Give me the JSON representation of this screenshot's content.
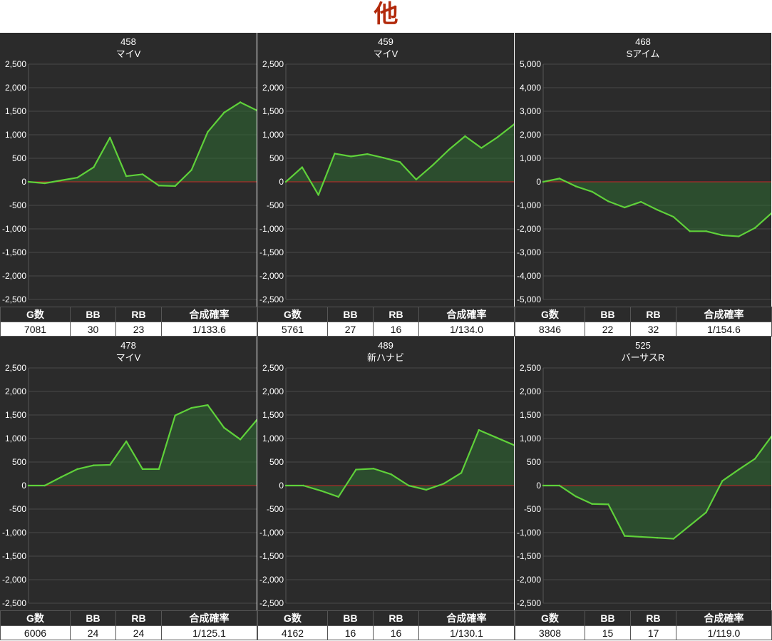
{
  "page": {
    "title": "他"
  },
  "colors": {
    "background": "#2b2b2b",
    "line": "#5fd13a",
    "zero_line": "#c62828",
    "fill": "#2e6a32",
    "title": "#b22a0c"
  },
  "table_headers": [
    "G数",
    "BB",
    "RB",
    "合成確率"
  ],
  "panels": [
    {
      "number": "458",
      "machine": "マイV",
      "stats": {
        "games": "7081",
        "bb": "30",
        "rb": "23",
        "rate": "1/133.6"
      }
    },
    {
      "number": "459",
      "machine": "マイV",
      "stats": {
        "games": "5761",
        "bb": "27",
        "rb": "16",
        "rate": "1/134.0"
      }
    },
    {
      "number": "468",
      "machine": "Sアイム",
      "stats": {
        "games": "8346",
        "bb": "22",
        "rb": "32",
        "rate": "1/154.6"
      }
    },
    {
      "number": "478",
      "machine": "マイV",
      "stats": {
        "games": "6006",
        "bb": "24",
        "rb": "24",
        "rate": "1/125.1"
      }
    },
    {
      "number": "489",
      "machine": "新ハナビ",
      "stats": {
        "games": "4162",
        "bb": "16",
        "rb": "16",
        "rate": "1/130.1"
      }
    },
    {
      "number": "525",
      "machine": "バーサスR",
      "stats": {
        "games": "3808",
        "bb": "15",
        "rb": "17",
        "rate": "1/119.0"
      }
    }
  ],
  "chart_data": [
    {
      "type": "area",
      "title": "458 マイV",
      "ylim": [
        -2500,
        2500
      ],
      "y_ticks": [
        "2,500",
        "2,000",
        "1,500",
        "1,000",
        "500",
        "0",
        "-500",
        "-1,000",
        "-1,500",
        "-2,000",
        "-2,500"
      ],
      "series": [
        {
          "values": [
            0,
            -30,
            30,
            90,
            310,
            940,
            120,
            160,
            -80,
            -90,
            250,
            1060,
            1470,
            1690,
            1520
          ]
        }
      ]
    },
    {
      "type": "area",
      "title": "459 マイV",
      "ylim": [
        -2500,
        2500
      ],
      "y_ticks": [
        "2,500",
        "2,000",
        "1,500",
        "1,000",
        "500",
        "0",
        "-500",
        "-1,000",
        "-1,500",
        "-2,000",
        "-2,500"
      ],
      "series": [
        {
          "values": [
            0,
            310,
            -280,
            600,
            540,
            590,
            510,
            420,
            50,
            350,
            680,
            970,
            720,
            950,
            1220
          ]
        }
      ]
    },
    {
      "type": "area",
      "title": "468 Sアイム",
      "ylim": [
        -5000,
        5000
      ],
      "y_ticks": [
        "5,000",
        "4,000",
        "3,000",
        "2,000",
        "1,000",
        "0",
        "-1,000",
        "-2,000",
        "-3,000",
        "-4,000",
        "-5,000"
      ],
      "series": [
        {
          "values": [
            0,
            140,
            -190,
            -420,
            -830,
            -1090,
            -850,
            -1190,
            -1490,
            -2100,
            -2100,
            -2270,
            -2320,
            -1960,
            -1340
          ]
        }
      ]
    },
    {
      "type": "area",
      "title": "478 マイV",
      "ylim": [
        -2500,
        2500
      ],
      "y_ticks": [
        "2,500",
        "2,000",
        "1,500",
        "1,000",
        "500",
        "0",
        "-500",
        "-1,000",
        "-1,500",
        "-2,000",
        "-2,500"
      ],
      "series": [
        {
          "values": [
            0,
            0,
            180,
            350,
            430,
            440,
            940,
            350,
            350,
            1490,
            1650,
            1710,
            1230,
            980,
            1390
          ]
        }
      ]
    },
    {
      "type": "area",
      "title": "489 新ハナビ",
      "ylim": [
        -2500,
        2500
      ],
      "y_ticks": [
        "2,500",
        "2,000",
        "1,500",
        "1,000",
        "500",
        "0",
        "-500",
        "-1,000",
        "-1,500",
        "-2,000",
        "-2,500"
      ],
      "series": [
        {
          "values": [
            0,
            0,
            -110,
            -240,
            340,
            360,
            240,
            0,
            -90,
            40,
            270,
            1180,
            1020,
            860
          ]
        }
      ]
    },
    {
      "type": "area",
      "title": "525 バーサスR",
      "ylim": [
        -2500,
        2500
      ],
      "y_ticks": [
        "2,500",
        "2,000",
        "1,500",
        "1,000",
        "500",
        "0",
        "-500",
        "-1,000",
        "-1,500",
        "-2,000",
        "-2,500"
      ],
      "series": [
        {
          "values": [
            0,
            0,
            -230,
            -390,
            -400,
            -1070,
            -1090,
            -1110,
            -1130,
            -850,
            -570,
            100,
            340,
            570,
            1040
          ]
        }
      ]
    }
  ]
}
